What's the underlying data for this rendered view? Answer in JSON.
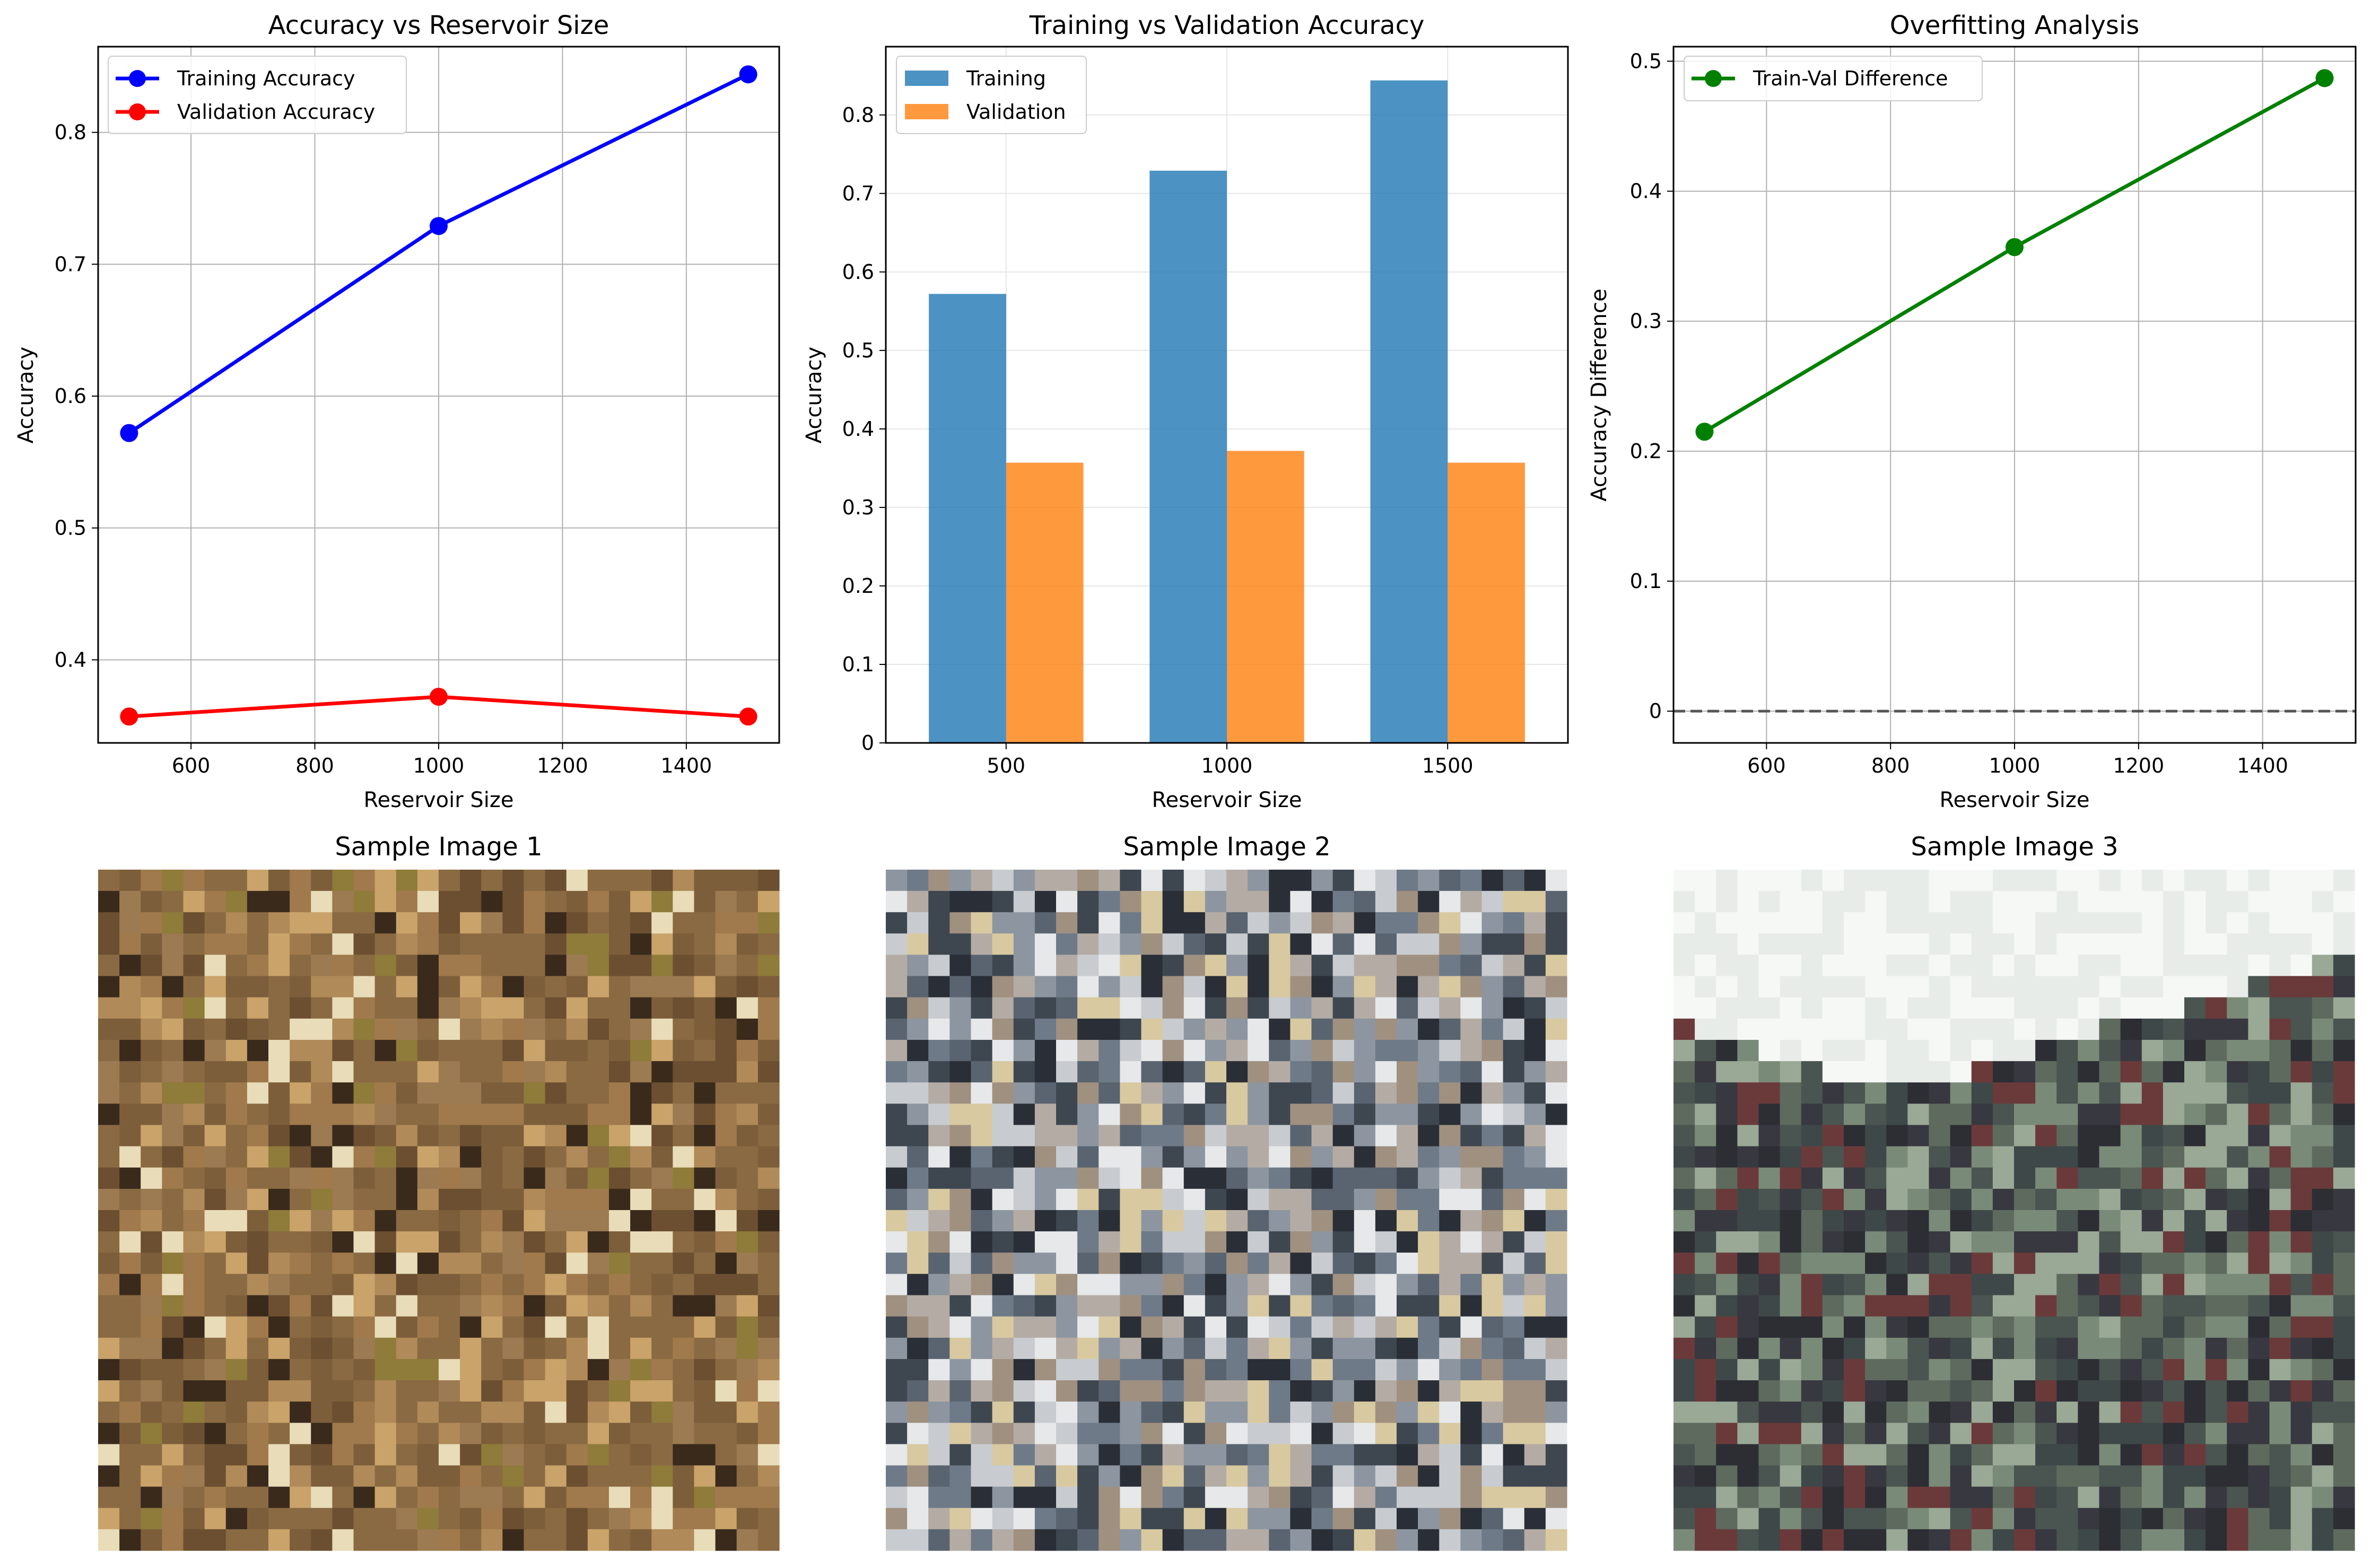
{
  "colors": {
    "training_line": "#0000ff",
    "validation_line": "#ff0000",
    "training_bar": "#1f77b4",
    "validation_bar": "#ff7f0e",
    "difference_line": "#008000",
    "zero_line": "#555555",
    "grid": "#b0b0b0"
  },
  "chart_data": [
    {
      "type": "line",
      "title": "Accuracy vs Reservoir Size",
      "xlabel": "Reservoir Size",
      "ylabel": "Accuracy",
      "x": [
        500,
        1000,
        1500
      ],
      "xlim": [
        450,
        1550
      ],
      "ylim": [
        0.337,
        0.865
      ],
      "xticks": [
        600,
        800,
        1000,
        1200,
        1400
      ],
      "yticks": [
        0.4,
        0.5,
        0.6,
        0.7,
        0.8
      ],
      "grid": true,
      "legend_position": "upper-left",
      "series": [
        {
          "name": "Training Accuracy",
          "values": [
            0.572,
            0.729,
            0.844
          ],
          "color": "#0000ff"
        },
        {
          "name": "Validation Accuracy",
          "values": [
            0.357,
            0.372,
            0.357
          ],
          "color": "#ff0000"
        }
      ]
    },
    {
      "type": "bar",
      "title": "Training vs Validation Accuracy",
      "xlabel": "Reservoir Size",
      "ylabel": "Accuracy",
      "categories": [
        "500",
        "1000",
        "1500"
      ],
      "ylim": [
        0,
        0.887
      ],
      "yticks": [
        0.0,
        0.1,
        0.2,
        0.3,
        0.4,
        0.5,
        0.6,
        0.7,
        0.8
      ],
      "grid": true,
      "legend_position": "upper-left",
      "series": [
        {
          "name": "Training",
          "values": [
            0.572,
            0.729,
            0.844
          ],
          "color": "#1f77b4"
        },
        {
          "name": "Validation",
          "values": [
            0.357,
            0.372,
            0.357
          ],
          "color": "#ff7f0e"
        }
      ]
    },
    {
      "type": "line",
      "title": "Overfitting Analysis",
      "xlabel": "Reservoir Size",
      "ylabel": "Accuracy Difference",
      "x": [
        500,
        1000,
        1500
      ],
      "xlim": [
        450,
        1550
      ],
      "ylim": [
        -0.0244,
        0.5112
      ],
      "xticks": [
        600,
        800,
        1000,
        1200,
        1400
      ],
      "yticks": [
        0.0,
        0.1,
        0.2,
        0.3,
        0.4,
        0.5
      ],
      "grid": true,
      "legend_position": "upper-left",
      "reference_line": {
        "y": 0,
        "style": "dashed"
      },
      "series": [
        {
          "name": "Train-Val Difference",
          "values": [
            0.215,
            0.357,
            0.487
          ],
          "color": "#008000"
        }
      ]
    }
  ],
  "images": [
    {
      "title": "Sample Image 1",
      "palette": [
        "#8a6a42",
        "#7d5e3b",
        "#a07a4c",
        "#6b4f30",
        "#9c7a52",
        "#c9a36a",
        "#e9dcb8",
        "#3a2a1c",
        "#b08a58",
        "#8f7b3a"
      ]
    },
    {
      "title": "Sample Image 2",
      "palette": [
        "#8d96a0",
        "#c8ccd0",
        "#e6e8ea",
        "#5a6470",
        "#3e4650",
        "#d8c9a0",
        "#a09080",
        "#2a2e36",
        "#6e7a88",
        "#b4aca4"
      ]
    },
    {
      "title": "Sample Image 3",
      "palette": [
        "#f6f8f6",
        "#e8ece8",
        "#5e6a5e",
        "#3e4848",
        "#2c2e34",
        "#6a3a3a",
        "#7a8a78",
        "#4a5450",
        "#9aa896",
        "#383840"
      ]
    }
  ]
}
